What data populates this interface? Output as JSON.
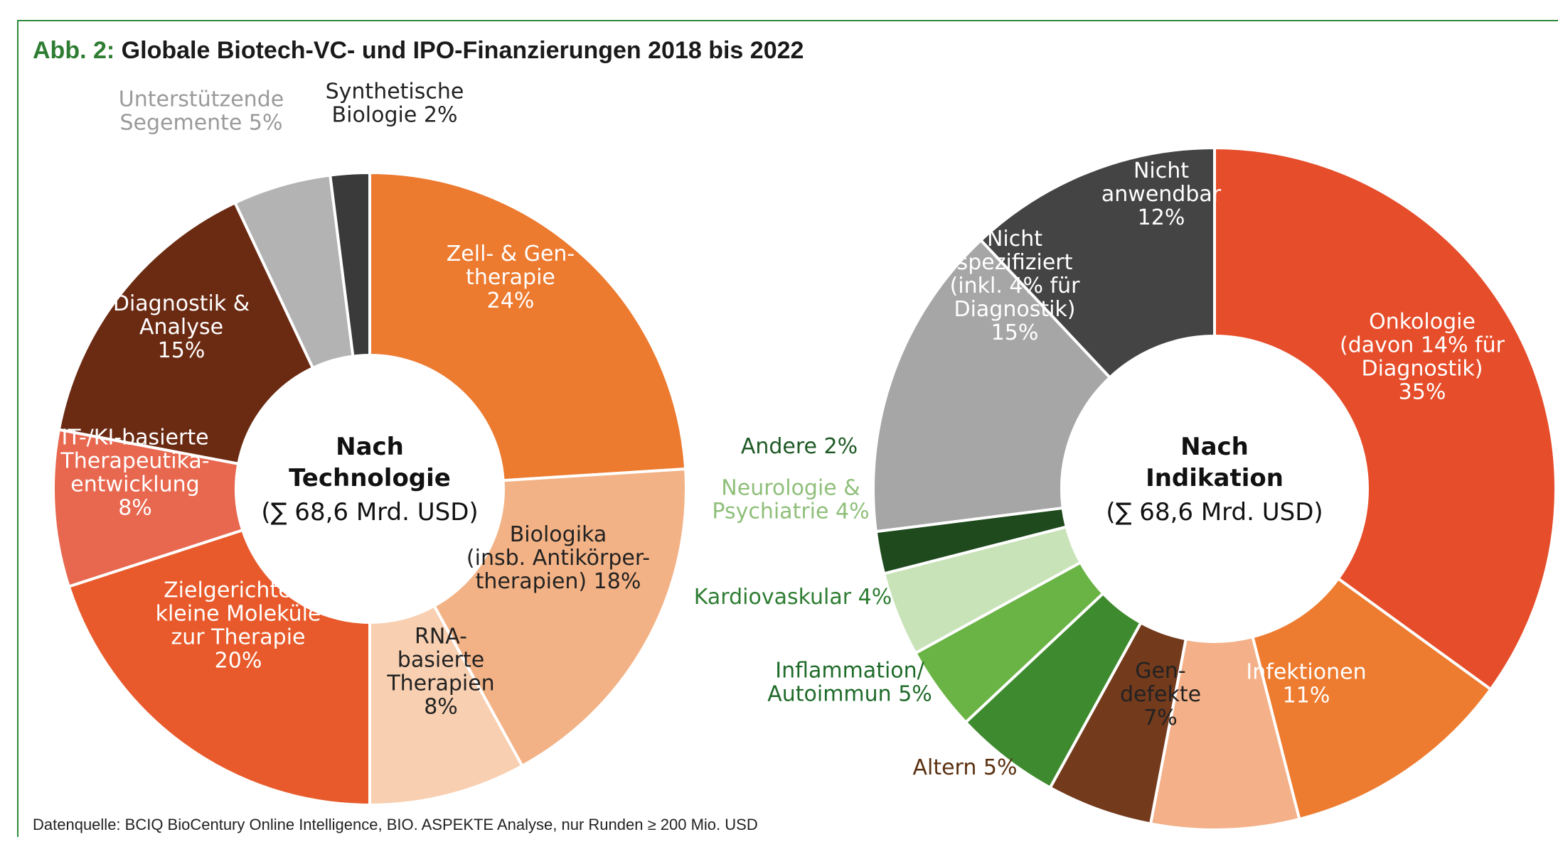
{
  "title_prefix": "Abb. 2:",
  "title": "Globale Biotech-VC- und IPO-Finanzierungen 2018 bis 2022",
  "source": "Datenquelle: BCIQ BioCentury Online Intelligence, BIO. ASPEKTE Analyse, nur Runden ≥ 200 Mio. USD",
  "chart_data": [
    {
      "type": "pie",
      "center_title": [
        "Nach",
        "Technologie"
      ],
      "center_total": "(∑ 68,6 Mrd. USD)",
      "series": [
        {
          "name": "Zell- & Gentherapie",
          "label": [
            "Zell- & Gen-",
            "therapie",
            "24%"
          ],
          "value": 24,
          "color": "#ec7a2f",
          "text_color": "#ffffff"
        },
        {
          "name": "Biologika (insb. Antikörpertherapien)",
          "label": [
            "Biologika",
            "(insb. Antikörper-",
            "therapien) 18%"
          ],
          "value": 18,
          "color": "#f3b285",
          "text_color": "#222222"
        },
        {
          "name": "RNA-basierte Therapien",
          "label": [
            "RNA-",
            "basierte",
            "Therapien",
            "8%"
          ],
          "value": 8,
          "color": "#f8cfb0",
          "text_color": "#222222"
        },
        {
          "name": "Zielgerichtete kleine Moleküle zur Therapie",
          "label": [
            "Zielgerichtete",
            "kleine Moleküle",
            "zur Therapie",
            "20%"
          ],
          "value": 20,
          "color": "#e85a2b",
          "text_color": "#ffffff"
        },
        {
          "name": "IT-/KI-basierte Therapeutikaentwicklung",
          "label": [
            "IT-/KI-basierte",
            "Therapeutika-",
            "entwicklung",
            "8%"
          ],
          "value": 8,
          "color": "#e8674f",
          "text_color": "#ffffff"
        },
        {
          "name": "Diagnostik & Analyse",
          "label": [
            "Diagnostik &",
            "Analyse",
            "15%"
          ],
          "value": 15,
          "color": "#6b2a12",
          "text_color": "#ffffff"
        },
        {
          "name": "Unterstützende Segemente",
          "label": [
            "Unterstützende",
            "Segemente 5%"
          ],
          "value": 5,
          "color": "#b3b3b3",
          "text_color": "#9a9a9a"
        },
        {
          "name": "Synthetische Biologie",
          "label": [
            "Synthetische",
            "Biologie 2%"
          ],
          "value": 2,
          "color": "#3a3a3a",
          "text_color": "#222222"
        }
      ]
    },
    {
      "type": "pie",
      "center_title": [
        "Nach",
        "Indikation"
      ],
      "center_total": "(∑ 68,6 Mrd. USD)",
      "series": [
        {
          "name": "Onkologie (davon 14% für Diagnostik)",
          "label": [
            "Onkologie",
            "(davon 14% für",
            "Diagnostik)",
            "35%"
          ],
          "value": 35,
          "color": "#e64d2a",
          "text_color": "#ffffff"
        },
        {
          "name": "Infektionen",
          "label": [
            "Infektionen",
            "11%"
          ],
          "value": 11,
          "color": "#ed7c30",
          "text_color": "#ffffff"
        },
        {
          "name": "Gendefekte",
          "label": [
            "Gen-",
            "defekte",
            "7%"
          ],
          "value": 7,
          "color": "#f4b088",
          "text_color": "#222222"
        },
        {
          "name": "Altern",
          "label": [
            "Altern 5%"
          ],
          "value": 5,
          "color": "#743a1c",
          "text_color": "#5a3010"
        },
        {
          "name": "Inflammation/Autoimmun",
          "label": [
            "Inflammation/",
            "Autoimmun 5%"
          ],
          "value": 5,
          "color": "#3e8a2e",
          "text_color": "#1f6b2a"
        },
        {
          "name": "Kardiovaskular",
          "label": [
            "Kardiovaskular 4%"
          ],
          "value": 4,
          "color": "#6ab345",
          "text_color": "#2e7d32"
        },
        {
          "name": "Neurologie & Psychiatrie",
          "label": [
            "Neurologie &",
            "Psychiatrie 4%"
          ],
          "value": 4,
          "color": "#c9e3b8",
          "text_color": "#8fbf7a"
        },
        {
          "name": "Andere",
          "label": [
            "Andere 2%"
          ],
          "value": 2,
          "color": "#1e4a1e",
          "text_color": "#1f5a26"
        },
        {
          "name": "Nicht spezifiziert (inkl. 4% für Diagnostik)",
          "label": [
            "Nicht",
            "spezifiziert",
            "(inkl. 4% für",
            "Diagnostik)",
            "15%"
          ],
          "value": 15,
          "color": "#a6a6a6",
          "text_color": "#ffffff"
        },
        {
          "name": "Nicht anwendbar",
          "label": [
            "Nicht",
            "anwendbar",
            "12%"
          ],
          "value": 12,
          "color": "#444444",
          "text_color": "#ffffff"
        }
      ]
    }
  ]
}
